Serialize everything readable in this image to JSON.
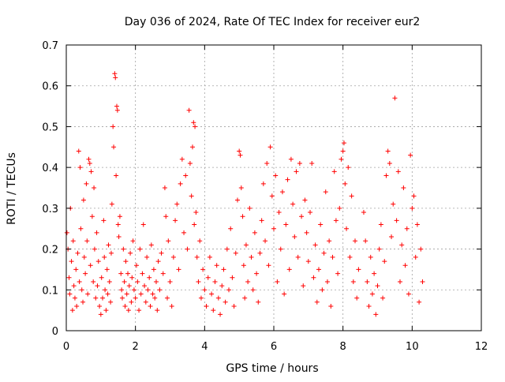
{
  "chart_data": {
    "type": "scatter",
    "title": "Day 036 of 2024, Rate Of TEC Index for receiver eur2",
    "xlabel": "GPS time / hours",
    "ylabel": "ROTI / TECUs",
    "xlim": [
      0,
      12
    ],
    "ylim": [
      0,
      0.7
    ],
    "x_ticks": [
      "0",
      "2",
      "4",
      "6",
      "8",
      "10",
      "12"
    ],
    "y_ticks": [
      "0",
      "0.1",
      "0.2",
      "0.3",
      "0.4",
      "0.5",
      "0.6",
      "0.7"
    ],
    "x_tick_values": [
      0,
      2,
      4,
      6,
      8,
      10,
      12
    ],
    "y_tick_values": [
      0,
      0.1,
      0.2,
      0.3,
      0.4,
      0.5,
      0.6,
      0.7
    ],
    "grid": true,
    "marker": "+",
    "series": [
      {
        "name": "ROTI",
        "color": "#ff0000",
        "points": [
          [
            0.02,
            0.24
          ],
          [
            0.05,
            0.2
          ],
          [
            0.08,
            0.13
          ],
          [
            0.1,
            0.09
          ],
          [
            0.12,
            0.3
          ],
          [
            0.15,
            0.17
          ],
          [
            0.18,
            0.05
          ],
          [
            0.2,
            0.22
          ],
          [
            0.22,
            0.11
          ],
          [
            0.25,
            0.08
          ],
          [
            0.28,
            0.15
          ],
          [
            0.3,
            0.06
          ],
          [
            0.33,
            0.19
          ],
          [
            0.36,
            0.44
          ],
          [
            0.38,
            0.12
          ],
          [
            0.4,
            0.4
          ],
          [
            0.42,
            0.25
          ],
          [
            0.45,
            0.1
          ],
          [
            0.48,
            0.07
          ],
          [
            0.5,
            0.32
          ],
          [
            0.52,
            0.18
          ],
          [
            0.55,
            0.14
          ],
          [
            0.58,
            0.36
          ],
          [
            0.6,
            0.22
          ],
          [
            0.62,
            0.09
          ],
          [
            0.65,
            0.42
          ],
          [
            0.68,
            0.41
          ],
          [
            0.7,
            0.16
          ],
          [
            0.72,
            0.39
          ],
          [
            0.75,
            0.28
          ],
          [
            0.78,
            0.12
          ],
          [
            0.8,
            0.35
          ],
          [
            0.82,
            0.2
          ],
          [
            0.85,
            0.08
          ],
          [
            0.88,
            0.24
          ],
          [
            0.9,
            0.11
          ],
          [
            0.93,
            0.17
          ],
          [
            0.96,
            0.06
          ],
          [
            1.0,
            0.04
          ],
          [
            1.02,
            0.13
          ],
          [
            1.05,
            0.08
          ],
          [
            1.08,
            0.27
          ],
          [
            1.1,
            0.18
          ],
          [
            1.12,
            0.1
          ],
          [
            1.15,
            0.05
          ],
          [
            1.18,
            0.15
          ],
          [
            1.2,
            0.09
          ],
          [
            1.22,
            0.21
          ],
          [
            1.25,
            0.12
          ],
          [
            1.28,
            0.07
          ],
          [
            1.3,
            0.19
          ],
          [
            1.32,
            0.31
          ],
          [
            1.35,
            0.5
          ],
          [
            1.37,
            0.45
          ],
          [
            1.4,
            0.63
          ],
          [
            1.42,
            0.62
          ],
          [
            1.44,
            0.38
          ],
          [
            1.46,
            0.55
          ],
          [
            1.48,
            0.54
          ],
          [
            1.5,
            0.26
          ],
          [
            1.52,
            0.23
          ],
          [
            1.55,
            0.28
          ],
          [
            1.58,
            0.14
          ],
          [
            1.6,
            0.1
          ],
          [
            1.62,
            0.08
          ],
          [
            1.65,
            0.2
          ],
          [
            1.68,
            0.12
          ],
          [
            1.7,
            0.06
          ],
          [
            1.72,
            0.17
          ],
          [
            1.75,
            0.09
          ],
          [
            1.78,
            0.14
          ],
          [
            1.8,
            0.05
          ],
          [
            1.82,
            0.11
          ],
          [
            1.85,
            0.19
          ],
          [
            1.88,
            0.07
          ],
          [
            1.9,
            0.13
          ],
          [
            1.93,
            0.22
          ],
          [
            1.96,
            0.1
          ],
          [
            2.0,
            0.08
          ],
          [
            2.03,
            0.16
          ],
          [
            2.06,
            0.12
          ],
          [
            2.1,
            0.05
          ],
          [
            2.13,
            0.2
          ],
          [
            2.16,
            0.09
          ],
          [
            2.2,
            0.14
          ],
          [
            2.23,
            0.26
          ],
          [
            2.26,
            0.11
          ],
          [
            2.3,
            0.07
          ],
          [
            2.33,
            0.18
          ],
          [
            2.36,
            0.1
          ],
          [
            2.4,
            0.13
          ],
          [
            2.43,
            0.06
          ],
          [
            2.46,
            0.21
          ],
          [
            2.5,
            0.09
          ],
          [
            2.53,
            0.15
          ],
          [
            2.56,
            0.08
          ],
          [
            2.6,
            0.12
          ],
          [
            2.63,
            0.05
          ],
          [
            2.66,
            0.17
          ],
          [
            2.7,
            0.1
          ],
          [
            2.75,
            0.19
          ],
          [
            2.8,
            0.14
          ],
          [
            2.85,
            0.35
          ],
          [
            2.88,
            0.28
          ],
          [
            2.92,
            0.08
          ],
          [
            2.95,
            0.22
          ],
          [
            3.0,
            0.12
          ],
          [
            3.05,
            0.06
          ],
          [
            3.1,
            0.18
          ],
          [
            3.15,
            0.27
          ],
          [
            3.2,
            0.31
          ],
          [
            3.25,
            0.15
          ],
          [
            3.3,
            0.36
          ],
          [
            3.35,
            0.42
          ],
          [
            3.4,
            0.24
          ],
          [
            3.45,
            0.38
          ],
          [
            3.5,
            0.2
          ],
          [
            3.55,
            0.54
          ],
          [
            3.58,
            0.41
          ],
          [
            3.62,
            0.33
          ],
          [
            3.65,
            0.45
          ],
          [
            3.68,
            0.51
          ],
          [
            3.7,
            0.26
          ],
          [
            3.72,
            0.5
          ],
          [
            3.75,
            0.29
          ],
          [
            3.78,
            0.18
          ],
          [
            3.82,
            0.12
          ],
          [
            3.86,
            0.22
          ],
          [
            3.9,
            0.08
          ],
          [
            3.95,
            0.15
          ],
          [
            4.0,
            0.1
          ],
          [
            4.05,
            0.06
          ],
          [
            4.1,
            0.13
          ],
          [
            4.15,
            0.18
          ],
          [
            4.2,
            0.09
          ],
          [
            4.25,
            0.05
          ],
          [
            4.3,
            0.12
          ],
          [
            4.35,
            0.16
          ],
          [
            4.4,
            0.08
          ],
          [
            4.45,
            0.04
          ],
          [
            4.5,
            0.11
          ],
          [
            4.55,
            0.15
          ],
          [
            4.6,
            0.07
          ],
          [
            4.65,
            0.2
          ],
          [
            4.7,
            0.1
          ],
          [
            4.75,
            0.25
          ],
          [
            4.8,
            0.13
          ],
          [
            4.85,
            0.06
          ],
          [
            4.9,
            0.19
          ],
          [
            4.95,
            0.32
          ],
          [
            5.0,
            0.44
          ],
          [
            5.03,
            0.43
          ],
          [
            5.06,
            0.35
          ],
          [
            5.1,
            0.28
          ],
          [
            5.13,
            0.16
          ],
          [
            5.16,
            0.08
          ],
          [
            5.2,
            0.21
          ],
          [
            5.25,
            0.12
          ],
          [
            5.3,
            0.3
          ],
          [
            5.35,
            0.18
          ],
          [
            5.4,
            0.1
          ],
          [
            5.45,
            0.24
          ],
          [
            5.5,
            0.14
          ],
          [
            5.55,
            0.07
          ],
          [
            5.6,
            0.19
          ],
          [
            5.65,
            0.27
          ],
          [
            5.7,
            0.36
          ],
          [
            5.75,
            0.22
          ],
          [
            5.8,
            0.41
          ],
          [
            5.85,
            0.16
          ],
          [
            5.9,
            0.45
          ],
          [
            5.95,
            0.33
          ],
          [
            6.0,
            0.25
          ],
          [
            6.05,
            0.38
          ],
          [
            6.1,
            0.12
          ],
          [
            6.15,
            0.29
          ],
          [
            6.2,
            0.2
          ],
          [
            6.25,
            0.34
          ],
          [
            6.3,
            0.09
          ],
          [
            6.35,
            0.26
          ],
          [
            6.4,
            0.37
          ],
          [
            6.45,
            0.15
          ],
          [
            6.5,
            0.42
          ],
          [
            6.55,
            0.31
          ],
          [
            6.6,
            0.23
          ],
          [
            6.65,
            0.39
          ],
          [
            6.7,
            0.18
          ],
          [
            6.75,
            0.41
          ],
          [
            6.8,
            0.28
          ],
          [
            6.85,
            0.11
          ],
          [
            6.9,
            0.32
          ],
          [
            6.95,
            0.24
          ],
          [
            7.0,
            0.17
          ],
          [
            7.05,
            0.29
          ],
          [
            7.1,
            0.41
          ],
          [
            7.15,
            0.13
          ],
          [
            7.2,
            0.21
          ],
          [
            7.25,
            0.07
          ],
          [
            7.3,
            0.15
          ],
          [
            7.35,
            0.26
          ],
          [
            7.4,
            0.1
          ],
          [
            7.45,
            0.19
          ],
          [
            7.5,
            0.34
          ],
          [
            7.55,
            0.12
          ],
          [
            7.6,
            0.22
          ],
          [
            7.65,
            0.06
          ],
          [
            7.7,
            0.18
          ],
          [
            7.75,
            0.39
          ],
          [
            7.8,
            0.27
          ],
          [
            7.85,
            0.14
          ],
          [
            7.9,
            0.3
          ],
          [
            7.95,
            0.42
          ],
          [
            8.0,
            0.44
          ],
          [
            8.03,
            0.46
          ],
          [
            8.06,
            0.36
          ],
          [
            8.1,
            0.25
          ],
          [
            8.15,
            0.4
          ],
          [
            8.2,
            0.18
          ],
          [
            8.25,
            0.33
          ],
          [
            8.3,
            0.12
          ],
          [
            8.35,
            0.22
          ],
          [
            8.4,
            0.08
          ],
          [
            8.45,
            0.15
          ],
          [
            8.6,
            0.29
          ],
          [
            8.65,
            0.22
          ],
          [
            8.7,
            0.12
          ],
          [
            8.75,
            0.06
          ],
          [
            8.8,
            0.18
          ],
          [
            8.85,
            0.09
          ],
          [
            8.9,
            0.14
          ],
          [
            8.95,
            0.04
          ],
          [
            9.0,
            0.11
          ],
          [
            9.05,
            0.2
          ],
          [
            9.1,
            0.26
          ],
          [
            9.15,
            0.08
          ],
          [
            9.2,
            0.17
          ],
          [
            9.25,
            0.38
          ],
          [
            9.3,
            0.44
          ],
          [
            9.35,
            0.41
          ],
          [
            9.4,
            0.23
          ],
          [
            9.45,
            0.31
          ],
          [
            9.5,
            0.57
          ],
          [
            9.55,
            0.27
          ],
          [
            9.6,
            0.39
          ],
          [
            9.65,
            0.12
          ],
          [
            9.7,
            0.21
          ],
          [
            9.75,
            0.35
          ],
          [
            9.8,
            0.16
          ],
          [
            9.85,
            0.25
          ],
          [
            9.9,
            0.09
          ],
          [
            9.95,
            0.43
          ],
          [
            10.0,
            0.3
          ],
          [
            10.05,
            0.33
          ],
          [
            10.1,
            0.18
          ],
          [
            10.15,
            0.26
          ],
          [
            10.2,
            0.07
          ],
          [
            10.25,
            0.2
          ],
          [
            10.3,
            0.12
          ]
        ]
      }
    ]
  }
}
